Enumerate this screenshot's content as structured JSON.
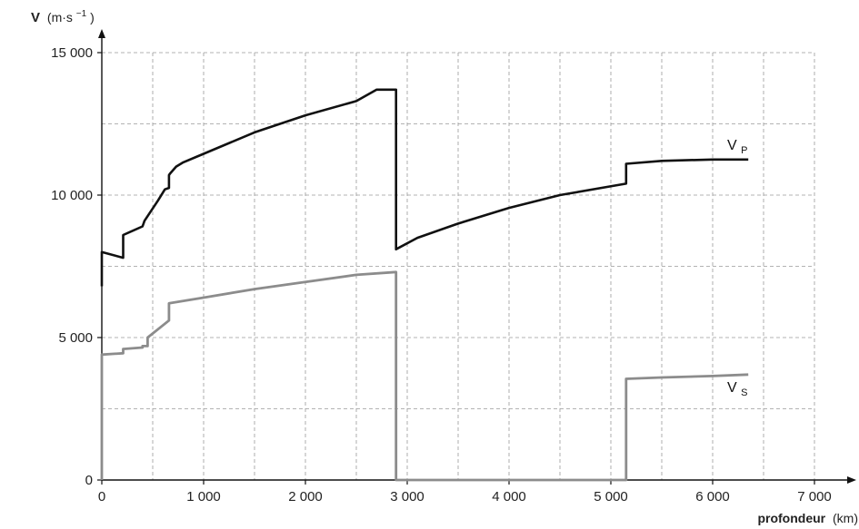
{
  "chart_data": {
    "type": "line",
    "ylabel_bold": "V",
    "ylabel_unit": "(m·s",
    "ylabel_exp": "−1",
    "ylabel_close": ")",
    "xlabel_bold": "profondeur",
    "xlabel_unit": "(km)",
    "xlim": [
      0,
      7000
    ],
    "ylim": [
      0,
      15000
    ],
    "grid": true,
    "x_ticks": [
      "0",
      "1 000",
      "2 000",
      "3 000",
      "4 000",
      "5 000",
      "6 000",
      "7 000"
    ],
    "y_ticks": [
      "0",
      "5 000",
      "10 000",
      "15 000"
    ],
    "x_grid": [
      0,
      500,
      1000,
      1500,
      2000,
      2500,
      3000,
      3500,
      4000,
      4500,
      5000,
      5500,
      6000,
      6500,
      7000
    ],
    "y_grid": [
      0,
      2500,
      5000,
      7500,
      10000,
      12500,
      15000
    ],
    "series": [
      {
        "name": "V",
        "name_sub": "P",
        "color": "#111111",
        "points": [
          [
            0,
            6800
          ],
          [
            0,
            8000
          ],
          [
            210,
            7800
          ],
          [
            210,
            8600
          ],
          [
            400,
            8900
          ],
          [
            420,
            9100
          ],
          [
            550,
            9800
          ],
          [
            620,
            10200
          ],
          [
            660,
            10250
          ],
          [
            660,
            10700
          ],
          [
            670,
            10750
          ],
          [
            730,
            11000
          ],
          [
            800,
            11150
          ],
          [
            1000,
            11450
          ],
          [
            1500,
            12200
          ],
          [
            2000,
            12800
          ],
          [
            2500,
            13300
          ],
          [
            2700,
            13700
          ],
          [
            2890,
            13700
          ],
          [
            2890,
            8100
          ],
          [
            3100,
            8500
          ],
          [
            3500,
            9000
          ],
          [
            4000,
            9550
          ],
          [
            4500,
            10000
          ],
          [
            5150,
            10400
          ],
          [
            5150,
            11100
          ],
          [
            5500,
            11200
          ],
          [
            6000,
            11250
          ],
          [
            6350,
            11250
          ]
        ]
      },
      {
        "name": "V",
        "name_sub": "S",
        "color": "#8c8c8c",
        "points": [
          [
            0,
            0
          ],
          [
            0,
            4400
          ],
          [
            210,
            4450
          ],
          [
            210,
            4600
          ],
          [
            400,
            4650
          ],
          [
            400,
            4700
          ],
          [
            450,
            4700
          ],
          [
            450,
            5000
          ],
          [
            660,
            5600
          ],
          [
            660,
            6200
          ],
          [
            1000,
            6400
          ],
          [
            1500,
            6700
          ],
          [
            2000,
            6950
          ],
          [
            2500,
            7200
          ],
          [
            2890,
            7300
          ],
          [
            2890,
            0
          ],
          [
            5150,
            0
          ],
          [
            5150,
            3550
          ],
          [
            5500,
            3600
          ],
          [
            6000,
            3650
          ],
          [
            6350,
            3700
          ]
        ]
      }
    ]
  }
}
